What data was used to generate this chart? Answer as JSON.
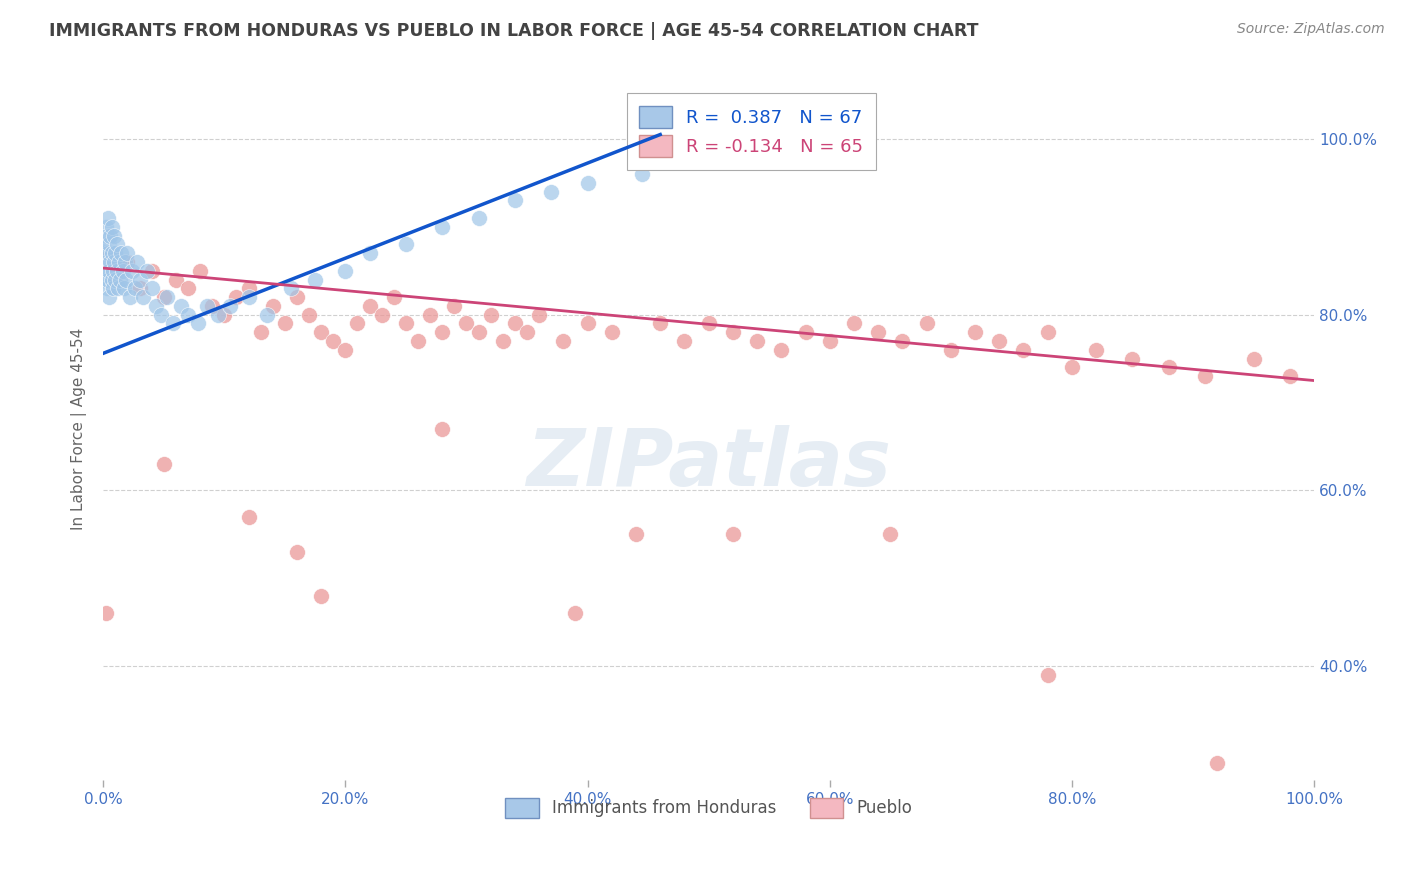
{
  "title": "IMMIGRANTS FROM HONDURAS VS PUEBLO IN LABOR FORCE | AGE 45-54 CORRELATION CHART",
  "source": "Source: ZipAtlas.com",
  "ylabel": "In Labor Force | Age 45-54",
  "xlim": [
    0.0,
    1.0
  ],
  "ylim": [
    0.27,
    1.07
  ],
  "ytick_labels": [
    "40.0%",
    "60.0%",
    "80.0%",
    "100.0%"
  ],
  "ytick_values": [
    0.4,
    0.6,
    0.8,
    1.0
  ],
  "xtick_labels": [
    "0.0%",
    "20.0%",
    "40.0%",
    "60.0%",
    "80.0%",
    "100.0%"
  ],
  "xtick_values": [
    0.0,
    0.2,
    0.4,
    0.6,
    0.8,
    1.0
  ],
  "background_color": "#ffffff",
  "grid_color": "#d0d0d0",
  "title_color": "#434343",
  "axis_label_color": "#4472c4",
  "blue_scatter_x": [
    0.001,
    0.001,
    0.002,
    0.002,
    0.002,
    0.003,
    0.003,
    0.003,
    0.004,
    0.004,
    0.004,
    0.005,
    0.005,
    0.005,
    0.006,
    0.006,
    0.007,
    0.007,
    0.007,
    0.008,
    0.008,
    0.009,
    0.009,
    0.01,
    0.01,
    0.011,
    0.011,
    0.012,
    0.013,
    0.014,
    0.015,
    0.016,
    0.017,
    0.018,
    0.019,
    0.02,
    0.022,
    0.024,
    0.026,
    0.028,
    0.03,
    0.033,
    0.036,
    0.04,
    0.044,
    0.048,
    0.053,
    0.058,
    0.064,
    0.07,
    0.078,
    0.086,
    0.095,
    0.105,
    0.12,
    0.135,
    0.155,
    0.175,
    0.2,
    0.22,
    0.25,
    0.28,
    0.31,
    0.34,
    0.37,
    0.4,
    0.445
  ],
  "blue_scatter_y": [
    0.84,
    0.87,
    0.85,
    0.88,
    0.9,
    0.83,
    0.86,
    0.89,
    0.84,
    0.87,
    0.91,
    0.85,
    0.88,
    0.82,
    0.86,
    0.89,
    0.84,
    0.87,
    0.9,
    0.85,
    0.83,
    0.86,
    0.89,
    0.84,
    0.87,
    0.85,
    0.88,
    0.83,
    0.86,
    0.84,
    0.87,
    0.85,
    0.83,
    0.86,
    0.84,
    0.87,
    0.82,
    0.85,
    0.83,
    0.86,
    0.84,
    0.82,
    0.85,
    0.83,
    0.81,
    0.8,
    0.82,
    0.79,
    0.81,
    0.8,
    0.79,
    0.81,
    0.8,
    0.81,
    0.82,
    0.8,
    0.83,
    0.84,
    0.85,
    0.87,
    0.88,
    0.9,
    0.91,
    0.93,
    0.94,
    0.95,
    0.96
  ],
  "pink_scatter_x": [
    0.002,
    0.01,
    0.02,
    0.03,
    0.04,
    0.05,
    0.06,
    0.07,
    0.08,
    0.09,
    0.1,
    0.11,
    0.12,
    0.13,
    0.14,
    0.15,
    0.16,
    0.17,
    0.18,
    0.19,
    0.2,
    0.21,
    0.22,
    0.23,
    0.24,
    0.25,
    0.26,
    0.27,
    0.28,
    0.29,
    0.3,
    0.31,
    0.32,
    0.33,
    0.34,
    0.35,
    0.36,
    0.38,
    0.4,
    0.42,
    0.44,
    0.46,
    0.48,
    0.5,
    0.52,
    0.54,
    0.56,
    0.58,
    0.6,
    0.62,
    0.64,
    0.66,
    0.68,
    0.7,
    0.72,
    0.74,
    0.76,
    0.78,
    0.8,
    0.82,
    0.85,
    0.88,
    0.91,
    0.95,
    0.98
  ],
  "pink_scatter_y": [
    0.87,
    0.84,
    0.86,
    0.83,
    0.85,
    0.82,
    0.84,
    0.83,
    0.85,
    0.81,
    0.8,
    0.82,
    0.83,
    0.78,
    0.81,
    0.79,
    0.82,
    0.8,
    0.78,
    0.77,
    0.76,
    0.79,
    0.81,
    0.8,
    0.82,
    0.79,
    0.77,
    0.8,
    0.78,
    0.81,
    0.79,
    0.78,
    0.8,
    0.77,
    0.79,
    0.78,
    0.8,
    0.77,
    0.79,
    0.78,
    0.55,
    0.79,
    0.77,
    0.79,
    0.78,
    0.77,
    0.76,
    0.78,
    0.77,
    0.79,
    0.78,
    0.77,
    0.79,
    0.76,
    0.78,
    0.77,
    0.76,
    0.78,
    0.74,
    0.76,
    0.75,
    0.74,
    0.73,
    0.75,
    0.73
  ],
  "pink_scatter_extra_x": [
    0.002,
    0.05,
    0.12,
    0.16,
    0.18,
    0.28,
    0.39,
    0.52,
    0.65,
    0.78,
    0.92
  ],
  "pink_scatter_extra_y": [
    0.46,
    0.63,
    0.57,
    0.53,
    0.48,
    0.67,
    0.46,
    0.55,
    0.55,
    0.39,
    0.29
  ],
  "blue_line_x0": 0.0,
  "blue_line_x1": 0.46,
  "blue_line_y0": 0.756,
  "blue_line_y1": 1.005,
  "pink_line_x0": 0.0,
  "pink_line_x1": 1.0,
  "pink_line_y0": 0.853,
  "pink_line_y1": 0.725,
  "blue_color": "#9fc5e8",
  "pink_color": "#ea9999",
  "blue_line_color": "#1155cc",
  "pink_line_color": "#cc4477"
}
